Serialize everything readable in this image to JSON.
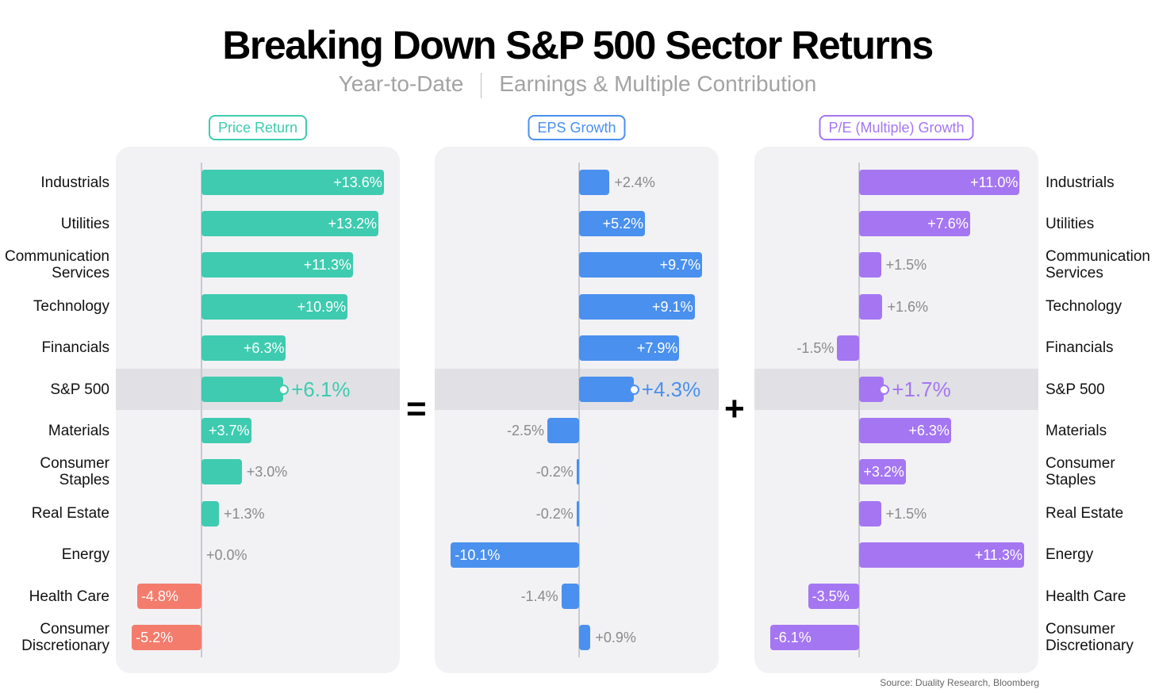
{
  "title": "Breaking Down S&P 500 Sector Returns",
  "subtitle": {
    "left": "Year-to-Date",
    "right": "Earnings & Multiple Contribution"
  },
  "operators": {
    "equals": "=",
    "plus": "+"
  },
  "source": "Source: Duality Research, Bloomberg",
  "chart_data": {
    "type": "bar",
    "orientation": "horizontal",
    "categories": [
      "Industrials",
      "Utilities",
      "Communication Services",
      "Technology",
      "Financials",
      "S&P 500",
      "Materials",
      "Consumer Staples",
      "Real Estate",
      "Energy",
      "Health Care",
      "Consumer Discretionary"
    ],
    "category_lines": [
      [
        "Industrials"
      ],
      [
        "Utilities"
      ],
      [
        "Communication",
        "Services"
      ],
      [
        "Technology"
      ],
      [
        "Financials"
      ],
      [
        "S&P 500"
      ],
      [
        "Materials"
      ],
      [
        "Consumer",
        "Staples"
      ],
      [
        "Real Estate"
      ],
      [
        "Energy"
      ],
      [
        "Health Care"
      ],
      [
        "Consumer",
        "Discretionary"
      ]
    ],
    "highlight_category": "S&P 500",
    "series": [
      {
        "name": "Price Return",
        "color": "#3ecbb0",
        "negative_color": "#f47c6c",
        "values": [
          13.6,
          13.2,
          11.3,
          10.9,
          6.3,
          6.1,
          3.7,
          3.0,
          1.3,
          0.0,
          -4.8,
          -5.2
        ],
        "labels": [
          "+13.6%",
          "+13.2%",
          "+11.3%",
          "+10.9%",
          "+6.3%",
          "+6.1%",
          "+3.7%",
          "+3.0%",
          "+1.3%",
          "+0.0%",
          "-4.8%",
          "-5.2%"
        ]
      },
      {
        "name": "EPS Growth",
        "color": "#4a90ee",
        "negative_color": "#4a90ee",
        "values": [
          2.4,
          5.2,
          9.7,
          9.1,
          7.9,
          4.3,
          -2.5,
          -0.2,
          -0.2,
          -10.1,
          -1.4,
          0.9
        ],
        "labels": [
          "+2.4%",
          "+5.2%",
          "+9.7%",
          "+9.1%",
          "+7.9%",
          "+4.3%",
          "-2.5%",
          "-0.2%",
          "-0.2%",
          "-10.1%",
          "-1.4%",
          "+0.9%"
        ]
      },
      {
        "name": "P/E (Multiple) Growth",
        "color": "#a576f2",
        "negative_color": "#a576f2",
        "values": [
          11.0,
          7.6,
          1.5,
          1.6,
          -1.5,
          1.7,
          6.3,
          3.2,
          1.5,
          11.3,
          -3.5,
          -6.1
        ],
        "labels": [
          "+11.0%",
          "+7.6%",
          "+1.5%",
          "+1.6%",
          "-1.5%",
          "+1.7%",
          "+6.3%",
          "+3.2%",
          "+1.5%",
          "+11.3%",
          "-3.5%",
          "-6.1%"
        ]
      }
    ]
  }
}
